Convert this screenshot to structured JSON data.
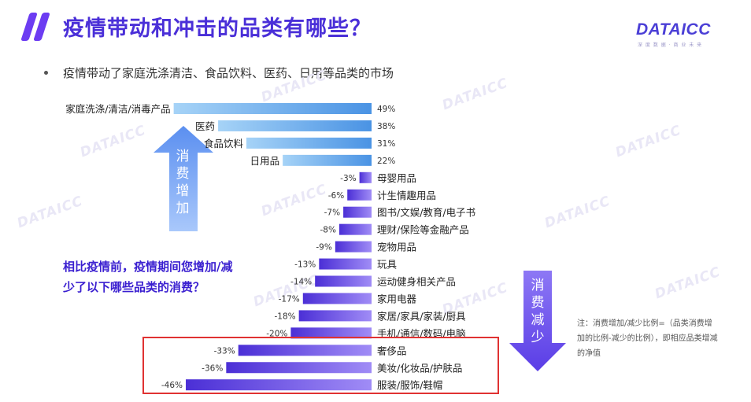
{
  "header": {
    "title": "疫情带动和冲击的品类有哪些？",
    "logo": "DATAICC",
    "logo_sub": "深 度 数 据 · 商 业 未 来"
  },
  "subtitle": "疫情带动了家庭洗涤清洁、食品饮料、医药、日用等品类的市场",
  "arrow_up_label": "消费增加",
  "arrow_down_label": "消费减少",
  "question": "相比疫情前，疫情期间您增加/减少了以下哪些品类的消费？",
  "note": "注：消费增加/减少比例=（品类消费增加的比例-减少的比例），即相应品类增减的净值",
  "watermark": "DATAICC",
  "colors": {
    "positive_start": "#8fc8f4",
    "positive_end": "#4a90e2",
    "negative_start": "#4b2fd6",
    "negative_end": "#9b85f5",
    "highlight_border": "#e03232",
    "title": "#4a2fd8"
  },
  "chart_data": {
    "type": "bar",
    "orientation": "horizontal",
    "categories": [
      "家庭洗涤/清洁/消毒产品",
      "医药",
      "食品饮料",
      "日用品",
      "母婴用品",
      "计生情趣用品",
      "图书/文娱/教育/电子书",
      "理财/保险等金融产品",
      "宠物用品",
      "玩具",
      "运动健身相关产品",
      "家用电器",
      "家居/家具/家装/厨具",
      "手机/通信/数码/电脑",
      "奢侈品",
      "美妆/化妆品/护肤品",
      "服装/服饰/鞋帽"
    ],
    "values": [
      49,
      38,
      31,
      22,
      -3,
      -6,
      -7,
      -8,
      -9,
      -13,
      -14,
      -17,
      -18,
      -20,
      -33,
      -36,
      -46
    ],
    "labels": [
      "49%",
      "38%",
      "31%",
      "22%",
      "-3%",
      "-6%",
      "-7%",
      "-8%",
      "-9%",
      "-13%",
      "-14%",
      "-17%",
      "-18%",
      "-20%",
      "-33%",
      "-36%",
      "-46%"
    ],
    "highlighted": [
      "奢侈品",
      "美妆/化妆品/护肤品",
      "服装/服饰/鞋帽"
    ],
    "xlim": [
      -46,
      49
    ],
    "grid": false,
    "legend": "none"
  }
}
